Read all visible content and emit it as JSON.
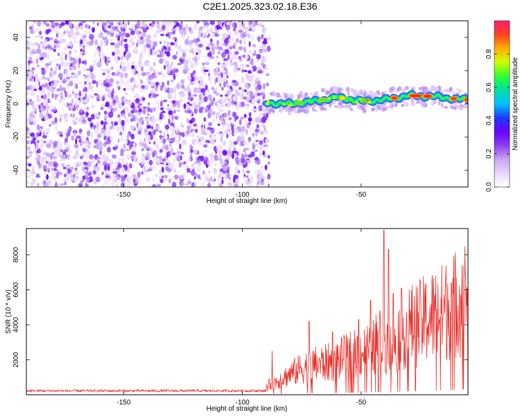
{
  "title": "C2E1.2025.323.02.18.E36",
  "colorbar": {
    "label": "Normalized spectral amplitude",
    "ticks": [
      0.0,
      0.2,
      0.4,
      0.6,
      0.8
    ],
    "tick_labels": [
      "0.0",
      "0.2",
      "0.4",
      "0.6",
      "0.8"
    ],
    "range": [
      0,
      1
    ],
    "colors": [
      "#ffffff",
      "#e9d6fb",
      "#c9a6f3",
      "#8a3ff0",
      "#6a00ff",
      "#1a3cff",
      "#00c0ff",
      "#00e0a0",
      "#30ff30",
      "#d0ff00",
      "#ffb000",
      "#ff4020",
      "#ff2070"
    ]
  },
  "chart_data": [
    {
      "type": "heatmap",
      "xlabel": "Height of straight line (km)",
      "ylabel": "Frequency (Hz)",
      "xlim": [
        -191,
        -5
      ],
      "ylim": [
        -50,
        50
      ],
      "xticks": [
        -150,
        -100,
        -50
      ],
      "xtick_labels": [
        "-150",
        "-100",
        "-50"
      ],
      "yticks": [
        -40,
        -20,
        0,
        20,
        40
      ],
      "ytick_labels": [
        "-40",
        "-20",
        "0",
        "20",
        "40"
      ],
      "noise_region_x": [
        -191,
        -90
      ],
      "signal_trace": {
        "x": [
          -90,
          -80,
          -70,
          -60,
          -50,
          -40,
          -30,
          -20,
          -10,
          -5
        ],
        "y": [
          0.5,
          0.0,
          1.5,
          4.0,
          1.5,
          2.5,
          5.0,
          4.5,
          3.0,
          2.5
        ]
      }
    },
    {
      "type": "line",
      "xlabel": "Height of straight line (km)",
      "ylabel": "SNR (10 * v/v)",
      "xlim": [
        -191,
        -5
      ],
      "ylim": [
        0,
        9500
      ],
      "xticks": [
        -150,
        -100,
        -50
      ],
      "xtick_labels": [
        "-150",
        "-100",
        "-50"
      ],
      "yticks": [
        2000,
        4000,
        6000,
        8000
      ],
      "ytick_labels": [
        "2000",
        "4000",
        "6000",
        "8000"
      ],
      "color": "#e8302a",
      "series": [
        {
          "x": [
            -191,
            -170,
            -150,
            -130,
            -110,
            -92,
            -89,
            -85,
            -80,
            -75,
            -70,
            -65,
            -60,
            -55,
            -50,
            -45,
            -42,
            -40,
            -38,
            -35,
            -32,
            -30,
            -25,
            -20,
            -15,
            -10,
            -5
          ],
          "y": [
            180,
            200,
            190,
            210,
            200,
            220,
            600,
            900,
            1300,
            1700,
            1900,
            2000,
            2200,
            2500,
            2700,
            3000,
            3500,
            9400,
            2800,
            3700,
            4000,
            4300,
            4600,
            5000,
            5300,
            5800,
            6500
          ]
        }
      ],
      "peaks": [
        {
          "x": -87.5,
          "y": 2500
        },
        {
          "x": -72,
          "y": 4200
        },
        {
          "x": -62,
          "y": 3600
        },
        {
          "x": -57,
          "y": 3300
        },
        {
          "x": -51,
          "y": 4300
        },
        {
          "x": -46,
          "y": 5400
        },
        {
          "x": -40.5,
          "y": 9400
        },
        {
          "x": -38.5,
          "y": 8300
        },
        {
          "x": -36.5,
          "y": 5800
        },
        {
          "x": -33,
          "y": 6100
        },
        {
          "x": -12,
          "y": 6400
        },
        {
          "x": -6,
          "y": 6800
        }
      ]
    }
  ]
}
